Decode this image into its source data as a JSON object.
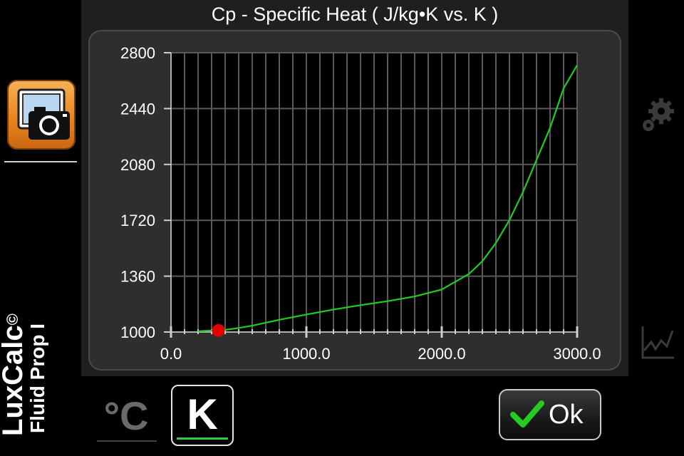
{
  "chart_data": {
    "type": "line",
    "title": "Cp - Specific Heat ( J/kg•K vs. K )",
    "xlabel": "",
    "ylabel": "",
    "xlim": [
      0,
      3000
    ],
    "ylim": [
      1000,
      2800
    ],
    "x_ticks": [
      "0.0",
      "1000.0",
      "2000.0",
      "3000.0"
    ],
    "y_ticks": [
      "1000",
      "1360",
      "1720",
      "2080",
      "2440",
      "2800"
    ],
    "grid": true,
    "line_color": "#22cc22",
    "series": [
      {
        "x": [
          200,
          300,
          400,
          500,
          600,
          800,
          1000,
          1200,
          1400,
          1600,
          1800,
          2000,
          2200,
          2300,
          2400,
          2500,
          2600,
          2700,
          2800,
          2900,
          3000
        ],
        "y": [
          1005,
          1010,
          1014,
          1026,
          1041,
          1079,
          1113,
          1145,
          1173,
          1199,
          1229,
          1274,
          1374,
          1456,
          1574,
          1722,
          1902,
          2109,
          2315,
          2570,
          2720
        ]
      }
    ],
    "marker": {
      "x": 350,
      "y": 1010,
      "color": "#e00000"
    }
  },
  "sidebar": {
    "brand_name": "LuxCalc",
    "brand_symbol": "©",
    "product_name": "Fluid Prop I",
    "camera_icon": "camera-icon"
  },
  "right_bar": {
    "settings_icon": "gear-icon",
    "chart_icon": "line-chart-icon"
  },
  "units": {
    "celsius_label": "°C",
    "kelvin_label": "K",
    "selected": "K",
    "selected_color": "#2ecc40"
  },
  "ok_button": {
    "label": "Ok",
    "icon": "checkmark-icon",
    "check_color": "#22cc22"
  }
}
